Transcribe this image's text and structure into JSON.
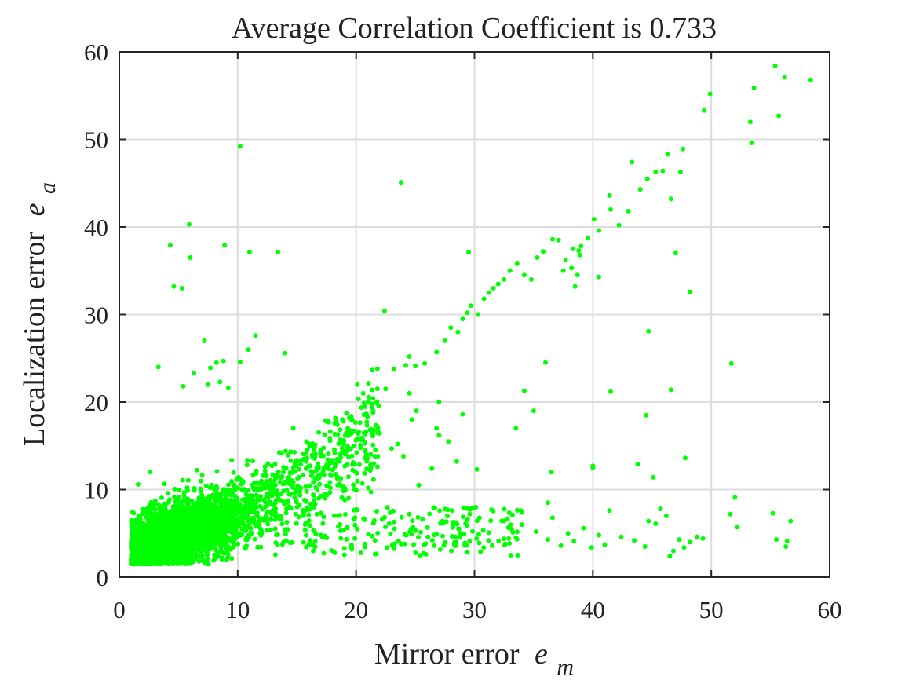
{
  "chart_data": {
    "type": "scatter",
    "title": "Average Correlation Coefficient is 0.733",
    "xlabel": {
      "text": "Mirror error",
      "symbol": "e",
      "subscript": "m"
    },
    "ylabel": {
      "text": "Localization error",
      "symbol": "e",
      "subscript": "a"
    },
    "xlim": [
      0,
      60
    ],
    "ylim": [
      0,
      60
    ],
    "xticks": [
      "0",
      "10",
      "20",
      "30",
      "40",
      "50",
      "60"
    ],
    "yticks": [
      "0",
      "10",
      "20",
      "30",
      "40",
      "50",
      "60"
    ],
    "grid": true,
    "legend": "none",
    "marker_color": "#00ff00",
    "series": [
      {
        "points": [
          [
            10.2,
            49.2
          ],
          [
            5.9,
            40.3
          ],
          [
            4.3,
            37.9
          ],
          [
            8.9,
            37.9
          ],
          [
            6.0,
            36.5
          ],
          [
            11.0,
            37.1
          ],
          [
            13.4,
            37.1
          ],
          [
            4.6,
            33.2
          ],
          [
            5.3,
            33.0
          ],
          [
            7.2,
            27.0
          ],
          [
            11.5,
            27.6
          ],
          [
            10.9,
            26.0
          ],
          [
            14.0,
            25.6
          ],
          [
            3.3,
            24.0
          ],
          [
            6.3,
            23.3
          ],
          [
            7.7,
            23.9
          ],
          [
            8.2,
            24.5
          ],
          [
            8.8,
            24.7
          ],
          [
            10.2,
            24.6
          ],
          [
            7.5,
            22.0
          ],
          [
            8.5,
            22.3
          ],
          [
            5.4,
            21.8
          ],
          [
            9.2,
            21.6
          ],
          [
            23.8,
            45.1
          ],
          [
            22.4,
            30.4
          ],
          [
            24.5,
            25.2
          ],
          [
            29.5,
            37.1
          ],
          [
            36.0,
            24.5
          ],
          [
            24.2,
            24.2
          ],
          [
            25.0,
            24.1
          ],
          [
            25.8,
            24.4
          ],
          [
            26.8,
            25.7
          ],
          [
            27.5,
            27.0
          ],
          [
            28.0,
            28.5
          ],
          [
            28.6,
            28.0
          ],
          [
            29.0,
            29.5
          ],
          [
            29.4,
            30.2
          ],
          [
            29.7,
            31.0
          ],
          [
            30.3,
            30.0
          ],
          [
            30.8,
            31.8
          ],
          [
            31.2,
            32.5
          ],
          [
            31.6,
            33.0
          ],
          [
            32.0,
            33.5
          ],
          [
            32.5,
            34.0
          ],
          [
            33.0,
            35.0
          ],
          [
            33.6,
            35.8
          ],
          [
            34.2,
            34.5
          ],
          [
            34.8,
            34.0
          ],
          [
            35.3,
            36.5
          ],
          [
            35.8,
            37.2
          ],
          [
            36.6,
            38.6
          ],
          [
            37.1,
            38.5
          ],
          [
            37.7,
            36.2
          ],
          [
            38.3,
            37.5
          ],
          [
            38.9,
            36.8
          ],
          [
            39.6,
            38.7
          ],
          [
            40.1,
            40.9
          ],
          [
            40.5,
            39.6
          ],
          [
            41.5,
            42.0
          ],
          [
            42.2,
            40.2
          ],
          [
            43.0,
            41.8
          ],
          [
            43.3,
            47.4
          ],
          [
            44.0,
            44.3
          ],
          [
            44.6,
            45.5
          ],
          [
            45.3,
            46.3
          ],
          [
            45.9,
            46.4
          ],
          [
            46.3,
            48.3
          ],
          [
            46.6,
            43.2
          ],
          [
            47.4,
            46.3
          ],
          [
            47.6,
            48.9
          ],
          [
            49.4,
            53.3
          ],
          [
            49.9,
            55.2
          ],
          [
            53.3,
            52.0
          ],
          [
            53.4,
            49.6
          ],
          [
            53.6,
            55.9
          ],
          [
            55.4,
            58.4
          ],
          [
            55.7,
            52.7
          ],
          [
            56.2,
            57.1
          ],
          [
            58.4,
            56.8
          ],
          [
            38.5,
            33.2
          ],
          [
            38.7,
            34.5
          ],
          [
            38.2,
            35.3
          ],
          [
            37.5,
            35.0
          ],
          [
            38.8,
            37.3
          ],
          [
            39.0,
            37.8
          ],
          [
            40.5,
            34.3
          ],
          [
            41.4,
            43.6
          ],
          [
            41.5,
            21.2
          ],
          [
            44.5,
            18.5
          ],
          [
            44.7,
            28.1
          ],
          [
            46.6,
            21.4
          ],
          [
            47.0,
            37.0
          ],
          [
            48.2,
            32.6
          ],
          [
            51.7,
            24.4
          ],
          [
            25.1,
            19.0
          ],
          [
            24.5,
            21.0
          ],
          [
            23.2,
            23.8
          ],
          [
            27.0,
            20.0
          ],
          [
            29.0,
            18.6
          ],
          [
            26.8,
            17.0
          ],
          [
            27.8,
            15.5
          ],
          [
            28.5,
            13.2
          ],
          [
            30.2,
            12.3
          ],
          [
            34.2,
            21.3
          ],
          [
            35.0,
            19.0
          ],
          [
            33.5,
            17.0
          ],
          [
            36.5,
            12.0
          ],
          [
            26.4,
            12.4
          ],
          [
            27.0,
            16.2
          ],
          [
            23.5,
            15.2
          ],
          [
            24.0,
            13.8
          ],
          [
            25.3,
            10.5
          ],
          [
            24.7,
            18.0
          ],
          [
            23.0,
            14.7
          ],
          [
            22.5,
            21.5
          ],
          [
            21.3,
            19.8
          ],
          [
            20.6,
            21.0
          ],
          [
            20.1,
            22.0
          ],
          [
            21.8,
            23.8
          ],
          [
            30.4,
            3.9
          ],
          [
            31.5,
            3.6
          ],
          [
            32.6,
            3.8
          ],
          [
            33.5,
            4.5
          ],
          [
            34.0,
            6.0
          ],
          [
            35.2,
            5.2
          ],
          [
            36.2,
            4.3
          ],
          [
            37.3,
            3.6
          ],
          [
            37.9,
            5.0
          ],
          [
            38.4,
            4.1
          ],
          [
            39.2,
            5.6
          ],
          [
            39.9,
            3.4
          ],
          [
            40.5,
            4.8
          ],
          [
            41.0,
            3.7
          ],
          [
            41.4,
            7.6
          ],
          [
            42.4,
            4.6
          ],
          [
            43.5,
            4.2
          ],
          [
            44.4,
            3.5
          ],
          [
            45.1,
            11.4
          ],
          [
            45.3,
            6.1
          ],
          [
            45.7,
            7.8
          ],
          [
            46.5,
            2.4
          ],
          [
            46.8,
            3.0
          ],
          [
            47.3,
            4.3
          ],
          [
            47.7,
            3.4
          ],
          [
            48.2,
            4.0
          ],
          [
            48.8,
            4.6
          ],
          [
            49.3,
            4.4
          ],
          [
            51.6,
            7.2
          ],
          [
            52.0,
            9.1
          ],
          [
            52.2,
            5.7
          ],
          [
            55.2,
            7.3
          ],
          [
            55.5,
            4.3
          ],
          [
            56.3,
            3.5
          ],
          [
            56.4,
            4.1
          ],
          [
            56.7,
            6.4
          ],
          [
            40.0,
            12.5
          ],
          [
            43.8,
            12.9
          ],
          [
            47.8,
            13.6
          ],
          [
            36.2,
            8.5
          ],
          [
            28.1,
            7.6
          ],
          [
            29.6,
            7.2
          ],
          [
            32.8,
            6.6
          ],
          [
            33.9,
            7.6
          ],
          [
            36.6,
            6.8
          ],
          [
            40.0,
            12.7
          ],
          [
            44.7,
            6.4
          ],
          [
            46.2,
            7.0
          ],
          [
            26.8,
            4.9
          ],
          [
            27.3,
            6.4
          ],
          [
            28.4,
            4.6
          ],
          [
            29.2,
            3.9
          ],
          [
            31.2,
            4.2
          ],
          [
            25.4,
            2.5
          ],
          [
            26.6,
            3.6
          ],
          [
            24.1,
            3.8
          ],
          [
            21.6,
            4.2
          ],
          [
            22.2,
            6.6
          ],
          [
            23.2,
            6.3
          ],
          [
            24.5,
            7.2
          ],
          [
            19.9,
            6.8
          ],
          [
            18.5,
            5.8
          ],
          [
            17.4,
            4.7
          ],
          [
            16.5,
            5.2
          ],
          [
            15.7,
            6.0
          ],
          [
            14.9,
            7.2
          ],
          [
            13.8,
            8.7
          ],
          [
            12.8,
            5.4
          ],
          [
            12.3,
            6.5
          ],
          [
            13.2,
            7.8
          ]
        ]
      }
    ]
  }
}
